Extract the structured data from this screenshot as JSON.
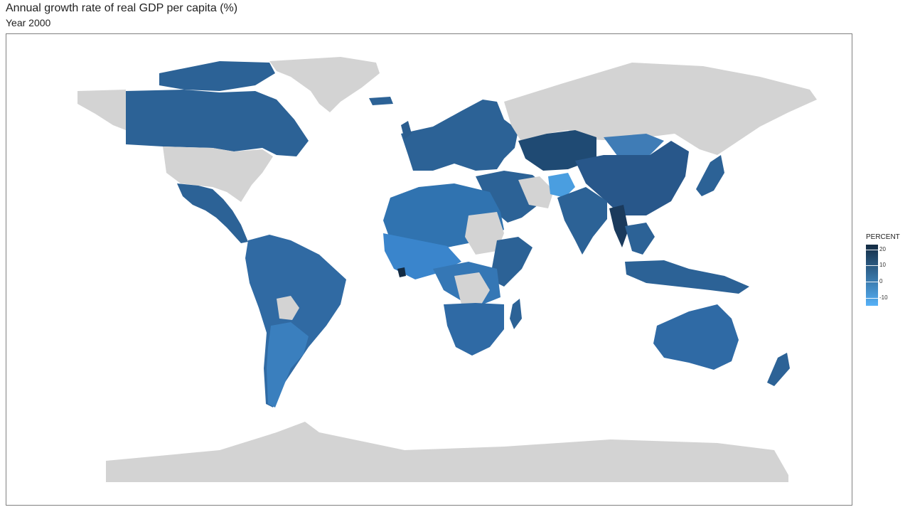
{
  "title": "Annual growth rate of real GDP per capita (%)",
  "subtitle": "Year 2000",
  "legend": {
    "title": "PERCENT",
    "range": [
      -15,
      23
    ],
    "ticks": [
      {
        "label": "20",
        "value": 20
      },
      {
        "label": "10",
        "value": 10
      },
      {
        "label": "0",
        "value": 0
      },
      {
        "label": "-10",
        "value": -10
      }
    ],
    "colors": {
      "high": "#132b43",
      "low": "#56b1f7",
      "no_data": "#d3d3d3"
    }
  },
  "chart_data": {
    "type": "choropleth",
    "title": "Annual growth rate of real GDP per capita (%)",
    "subtitle": "Year 2000",
    "fill_variable": "PERCENT",
    "color_scale": {
      "low": "#56b1f7",
      "high": "#132b43",
      "range": [
        -15,
        23
      ]
    },
    "no_data_color": "#d3d3d3"
  }
}
